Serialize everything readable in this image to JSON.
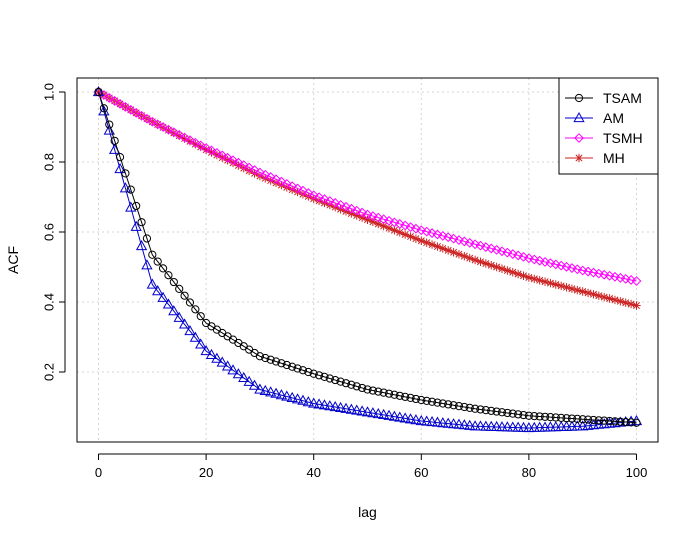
{
  "chart_data": {
    "type": "line",
    "title": "",
    "xlabel": "lag",
    "ylabel": "ACF",
    "xlim": [
      -4,
      104
    ],
    "ylim": [
      0.0,
      1.04
    ],
    "x_ticks": [
      0,
      20,
      40,
      60,
      80,
      100
    ],
    "y_ticks": [
      0.2,
      0.4,
      0.6,
      0.8,
      1.0
    ],
    "x_tick_labels": [
      "0",
      "20",
      "40",
      "60",
      "80",
      "100"
    ],
    "y_tick_labels": [
      "0.2",
      "0.4",
      "0.6",
      "0.8",
      "1.0"
    ],
    "grid": true,
    "legend": {
      "position": "top-right",
      "entries": [
        "TSAM",
        "AM",
        "TSMH",
        "MH"
      ]
    },
    "x": [
      0,
      10,
      20,
      30,
      40,
      50,
      60,
      70,
      80,
      90,
      100
    ],
    "series": [
      {
        "name": "TSAM",
        "color": "#000000",
        "marker": "circle",
        "values": [
          1.0,
          0.535,
          0.34,
          0.245,
          0.195,
          0.15,
          0.12,
          0.095,
          0.075,
          0.065,
          0.055
        ]
      },
      {
        "name": "AM",
        "color": "#0000cc",
        "marker": "triangle",
        "values": [
          1.0,
          0.45,
          0.26,
          0.15,
          0.11,
          0.085,
          0.06,
          0.045,
          0.04,
          0.045,
          0.06
        ]
      },
      {
        "name": "TSMH",
        "color": "#ff00ff",
        "marker": "diamond",
        "values": [
          1.0,
          0.915,
          0.84,
          0.77,
          0.705,
          0.65,
          0.605,
          0.565,
          0.525,
          0.49,
          0.46
        ]
      },
      {
        "name": "MH",
        "color": "#cc2222",
        "marker": "star",
        "values": [
          1.0,
          0.915,
          0.835,
          0.76,
          0.695,
          0.635,
          0.575,
          0.52,
          0.47,
          0.43,
          0.39
        ]
      }
    ]
  }
}
